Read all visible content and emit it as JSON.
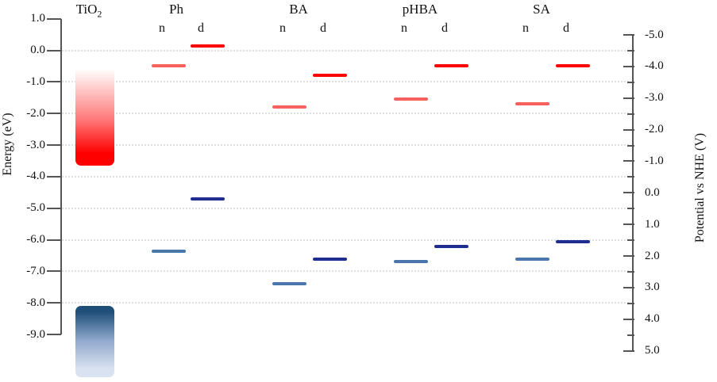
{
  "chart_data": {
    "type": "energy-level-diagram",
    "description": "Energy levels of TiO2 bands and frontier orbitals of Ph, BA, pHBA, SA (n and d forms)",
    "left_axis": {
      "label": "Energy (eV)",
      "max": 1.0,
      "min": -9.0,
      "tick_step": 1.0,
      "tick_labels": [
        "1.0",
        "0.0",
        "-1.0",
        "-2.0",
        "-3.0",
        "-4.0",
        "-5.0",
        "-6.0",
        "-7.0",
        "-8.0",
        "-9.0"
      ]
    },
    "right_axis": {
      "label": "Potential vs NHE (V)",
      "max": 5.0,
      "min": -5.0,
      "major_tick_step": 1.0,
      "minor_tick_step": 0.5,
      "tick_labels": [
        "-5.0",
        "-4.0",
        "-3.0",
        "-2.0",
        "-1.0",
        "0.0",
        "1.0",
        "2.0",
        "3.0",
        "4.0",
        "5.0"
      ],
      "relation": "E(eV) = -4.5 - V(NHE)"
    },
    "gridlines_eV": [
      0,
      -1,
      -2,
      -3,
      -4,
      -5,
      -6,
      -7,
      -8
    ],
    "tio2": {
      "label_main": "TiO",
      "label_sub": "2",
      "conduction_band_eV": {
        "top": -0.4,
        "bottom": -3.65
      },
      "valence_band_eV": {
        "top": -8.1,
        "bottom": -10.35
      }
    },
    "series_legend": [
      "n",
      "d"
    ],
    "groups": [
      {
        "label": "Ph",
        "series": [
          {
            "type": "n",
            "lumo_eV": -0.5,
            "homo_eV": -6.35
          },
          {
            "type": "d",
            "lumo_eV": 0.15,
            "homo_eV": -4.7
          }
        ]
      },
      {
        "label": "BA",
        "series": [
          {
            "type": "n",
            "lumo_eV": -1.8,
            "homo_eV": -7.4
          },
          {
            "type": "d",
            "lumo_eV": -0.8,
            "homo_eV": -6.6
          }
        ]
      },
      {
        "label": "pHBA",
        "series": [
          {
            "type": "n",
            "lumo_eV": -1.55,
            "homo_eV": -6.7
          },
          {
            "type": "d",
            "lumo_eV": -0.5,
            "homo_eV": -6.2
          }
        ]
      },
      {
        "label": "SA",
        "series": [
          {
            "type": "n",
            "lumo_eV": -1.7,
            "homo_eV": -6.6
          },
          {
            "type": "d",
            "lumo_eV": -0.5,
            "homo_eV": -6.05
          }
        ]
      }
    ],
    "colors": {
      "lumo_n": "#F96060",
      "lumo_d": "#FF0000",
      "homo_n": "#4A76AC",
      "homo_d": "#1F2D8F",
      "tio2_cb_top": "#FFFFFF",
      "tio2_cb_mid": "#FF7A7A",
      "tio2_cb_bottom": "#FF0000",
      "tio2_vb_top": "#1F4E79",
      "tio2_vb_mid": "#8FA8CC",
      "tio2_vb_bottom": "#D9E2F1",
      "gridline": "#DFDFDF",
      "axis": "#555555",
      "text": "#111111"
    }
  }
}
